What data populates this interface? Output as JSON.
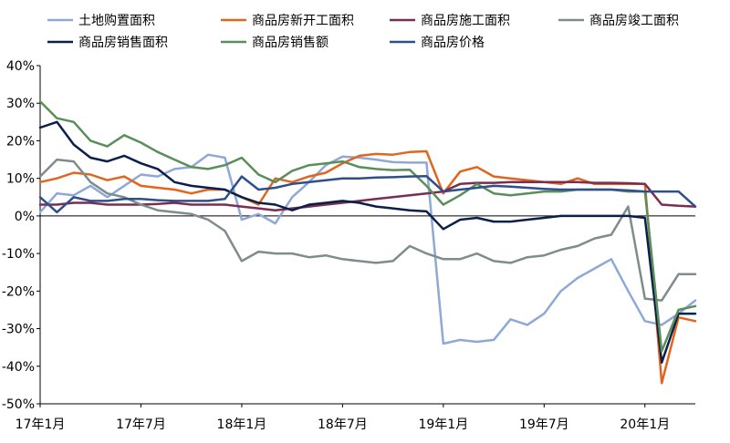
{
  "chart_data": {
    "type": "line",
    "title": "",
    "xlabel": "",
    "ylabel": "",
    "ylim": [
      -50,
      40
    ],
    "y_ticks": [
      40,
      30,
      20,
      10,
      0,
      -10,
      -20,
      -30,
      -40,
      -50
    ],
    "y_tick_labels": [
      "40%",
      "30%",
      "20%",
      "10%",
      "0%",
      "-10%",
      "-20%",
      "-30%",
      "-40%",
      "-50%"
    ],
    "x_ticks": [
      "2017-01",
      "2017-07",
      "2018-01",
      "2018-07",
      "2019-01",
      "2019-07",
      "2020-01"
    ],
    "x_tick_labels": [
      "17年1月",
      "17年7月",
      "18年1月",
      "18年7月",
      "19年1月",
      "19年7月",
      "20年1月"
    ],
    "x": [
      "2017-01",
      "2017-02",
      "2017-03",
      "2017-04",
      "2017-05",
      "2017-06",
      "2017-07",
      "2017-08",
      "2017-09",
      "2017-10",
      "2017-11",
      "2017-12",
      "2018-01",
      "2018-02",
      "2018-03",
      "2018-04",
      "2018-05",
      "2018-06",
      "2018-07",
      "2018-08",
      "2018-09",
      "2018-10",
      "2018-11",
      "2018-12",
      "2019-01",
      "2019-02",
      "2019-03",
      "2019-04",
      "2019-05",
      "2019-06",
      "2019-07",
      "2019-08",
      "2019-09",
      "2019-10",
      "2019-11",
      "2019-12",
      "2020-01",
      "2020-02",
      "2020-03",
      "2020-04"
    ],
    "grid": false,
    "legend_position": "top",
    "series": [
      {
        "name": "土地购置面积",
        "color": "#8EA9D8",
        "values": [
          1.0,
          6.0,
          5.5,
          8.0,
          5.0,
          8.0,
          11.0,
          10.5,
          12.5,
          13.0,
          16.3,
          15.5,
          -1.0,
          0.5,
          -2.0,
          5.0,
          9.0,
          13.5,
          15.8,
          15.5,
          15.0,
          14.3,
          14.2,
          14.2,
          -34.0,
          -33.0,
          -33.5,
          -33.0,
          -27.5,
          -29.0,
          -26.0,
          -20.0,
          -16.5,
          -14.0,
          -11.5,
          -20.0,
          -28.0,
          -29.0,
          -26.0,
          -22.5
        ]
      },
      {
        "name": "商品房新开工面积",
        "color": "#E2651E",
        "values": [
          9.0,
          10.0,
          11.5,
          11.0,
          9.5,
          10.5,
          8.0,
          7.5,
          7.0,
          6.0,
          7.0,
          7.0,
          5.0,
          3.0,
          10.0,
          9.0,
          10.5,
          11.5,
          14.0,
          16.0,
          16.5,
          16.3,
          17.0,
          17.2,
          6.0,
          11.8,
          13.0,
          10.5,
          10.0,
          9.5,
          9.0,
          8.5,
          10.0,
          8.5,
          8.5,
          8.5,
          8.5,
          -44.5,
          -27.0,
          -28.0
        ]
      },
      {
        "name": "商品房施工面积",
        "color": "#7A2E52",
        "values": [
          3.0,
          3.0,
          3.5,
          3.5,
          3.0,
          3.0,
          3.0,
          3.2,
          3.5,
          3.0,
          3.0,
          3.0,
          2.5,
          2.0,
          1.5,
          2.0,
          2.5,
          3.0,
          3.5,
          4.0,
          4.5,
          5.0,
          5.5,
          6.0,
          6.5,
          8.5,
          8.8,
          8.8,
          9.0,
          9.0,
          9.0,
          9.0,
          9.0,
          8.8,
          8.8,
          8.7,
          8.5,
          3.0,
          2.7,
          2.5
        ]
      },
      {
        "name": "商品房竣工面积",
        "color": "#7F8C8D",
        "values": [
          10.5,
          15.0,
          14.5,
          9.0,
          6.0,
          5.0,
          3.0,
          1.5,
          1.0,
          0.5,
          -1.0,
          -4.0,
          -12.0,
          -9.5,
          -10.0,
          -10.0,
          -11.0,
          -10.5,
          -11.5,
          -12.0,
          -12.5,
          -12.0,
          -8.0,
          -10.0,
          -11.5,
          -11.5,
          -10.0,
          -12.0,
          -12.5,
          -11.0,
          -10.5,
          -9.0,
          -8.0,
          -6.0,
          -5.0,
          2.5,
          -22.0,
          -22.5,
          -15.5,
          -15.5
        ]
      },
      {
        "name": "商品房销售面积",
        "color": "#0B1F4B",
        "values": [
          23.5,
          25.0,
          19.0,
          15.5,
          14.5,
          16.0,
          14.0,
          12.5,
          9.0,
          8.0,
          7.5,
          7.0,
          5.0,
          3.5,
          3.0,
          1.5,
          3.0,
          3.5,
          4.0,
          3.5,
          2.5,
          2.0,
          1.5,
          1.2,
          -3.5,
          -1.0,
          -0.5,
          -1.5,
          -1.5,
          -1.0,
          -0.5,
          0.0,
          0.0,
          0.0,
          0.0,
          0.0,
          -0.5,
          -39.0,
          -26.0,
          -26.0
        ]
      },
      {
        "name": "商品房销售额",
        "color": "#5B8E5B",
        "values": [
          30.5,
          26.0,
          25.0,
          20.0,
          18.5,
          21.5,
          19.5,
          17.0,
          15.0,
          13.0,
          12.5,
          13.5,
          15.5,
          11.0,
          9.0,
          12.0,
          13.5,
          14.0,
          14.5,
          13.0,
          12.5,
          12.2,
          12.3,
          8.0,
          3.0,
          5.5,
          8.5,
          6.0,
          5.5,
          6.0,
          6.5,
          6.5,
          7.0,
          7.0,
          7.0,
          6.5,
          6.5,
          -36.0,
          -25.0,
          -24.0
        ]
      },
      {
        "name": "商品房价格",
        "color": "#2F4F8A",
        "values": [
          5.0,
          1.0,
          5.0,
          4.0,
          4.0,
          4.5,
          4.5,
          4.2,
          4.0,
          4.0,
          4.0,
          4.5,
          10.5,
          7.0,
          7.5,
          8.5,
          9.0,
          9.5,
          10.0,
          10.0,
          10.2,
          10.3,
          10.5,
          10.6,
          6.5,
          7.0,
          7.5,
          8.0,
          7.8,
          7.5,
          7.2,
          7.0,
          7.0,
          7.0,
          7.0,
          6.8,
          6.5,
          6.5,
          6.5,
          2.5
        ]
      }
    ]
  }
}
